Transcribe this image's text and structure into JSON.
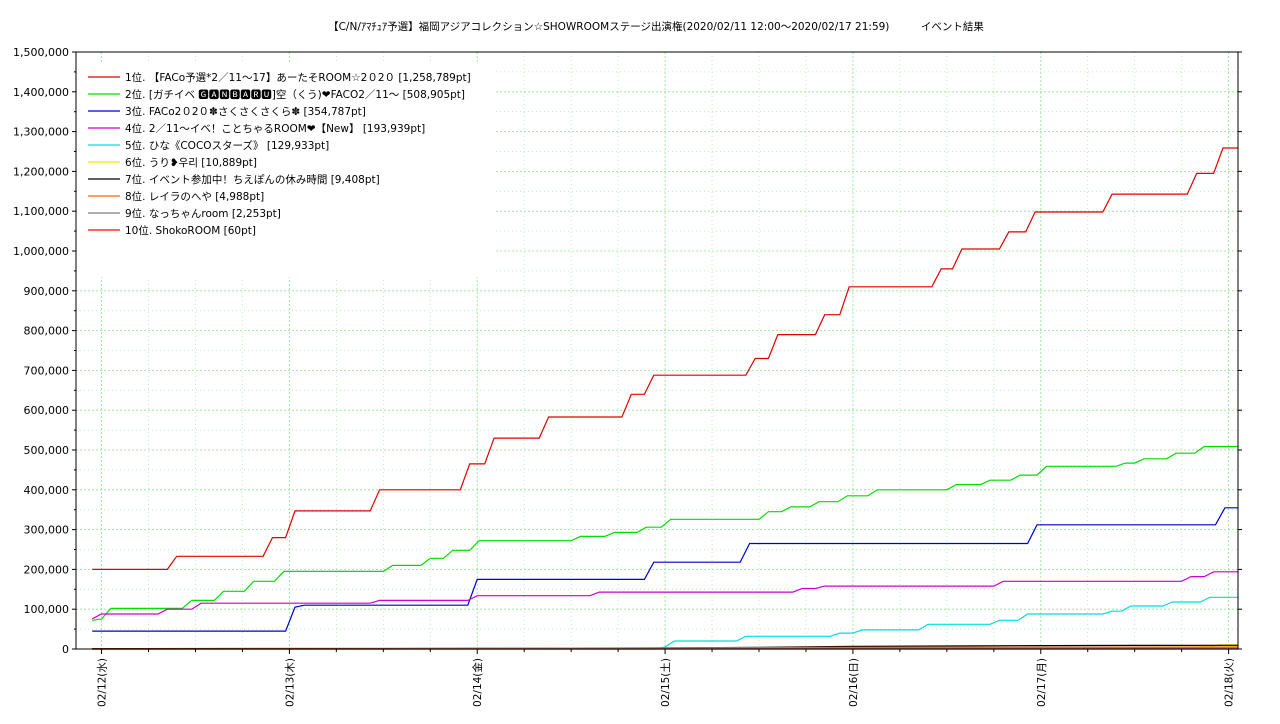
{
  "chart_data": {
    "type": "line",
    "title": "【C/N/ｱﾏﾁｭｱ予選】福岡アジアコレクション☆SHOWROOMステージ出演権(2020/02/11 12:00〜2020/02/17 21:59)　　　イベント結果",
    "xlabel": "",
    "ylabel": "",
    "ylim": [
      0,
      1500000
    ],
    "xlim": [
      -0.136,
      6.05
    ],
    "grid": true,
    "legend_position": "top-left",
    "y_ticks": [
      0,
      100000,
      200000,
      300000,
      400000,
      500000,
      600000,
      700000,
      800000,
      900000,
      1000000,
      1100000,
      1200000,
      1300000,
      1400000,
      1500000
    ],
    "y_tick_labels": [
      "0",
      "100,000",
      "200,000",
      "300,000",
      "400,000",
      "500,000",
      "600,000",
      "700,000",
      "800,000",
      "900,000",
      "1,000,000",
      "1,100,000",
      "1,200,000",
      "1,300,000",
      "1,400,000",
      "1,500,000"
    ],
    "x_ticks": [
      0,
      1,
      2,
      3,
      4,
      5,
      6
    ],
    "x_tick_labels": [
      "02/12(水)",
      "02/13(木)",
      "02/14(金)",
      "02/15(土)",
      "02/16(日)",
      "02/17(月)",
      "02/18(火)"
    ],
    "series": [
      {
        "name": "1位. 【FACo予選*2／11〜17】あーたそROOM☆2０2０ [1,258,789pt]",
        "color": "#e00000",
        "points": [
          [
            -0.05,
            200000
          ],
          [
            0.35,
            200000
          ],
          [
            0.4,
            233000
          ],
          [
            0.86,
            233000
          ],
          [
            0.91,
            280000
          ],
          [
            0.98,
            280000
          ],
          [
            1.03,
            347000
          ],
          [
            1.43,
            347000
          ],
          [
            1.48,
            400000
          ],
          [
            1.91,
            400000
          ],
          [
            1.96,
            465000
          ],
          [
            2.04,
            465000
          ],
          [
            2.09,
            530000
          ],
          [
            2.33,
            530000
          ],
          [
            2.38,
            583000
          ],
          [
            2.77,
            583000
          ],
          [
            2.82,
            640000
          ],
          [
            2.89,
            640000
          ],
          [
            2.94,
            688000
          ],
          [
            3.43,
            688000
          ],
          [
            3.48,
            730000
          ],
          [
            3.55,
            730000
          ],
          [
            3.6,
            790000
          ],
          [
            3.8,
            790000
          ],
          [
            3.85,
            840000
          ],
          [
            3.93,
            840000
          ],
          [
            3.98,
            910000
          ],
          [
            4.42,
            910000
          ],
          [
            4.47,
            955000
          ],
          [
            4.53,
            955000
          ],
          [
            4.58,
            1005000
          ],
          [
            4.78,
            1005000
          ],
          [
            4.83,
            1048000
          ],
          [
            4.92,
            1048000
          ],
          [
            4.97,
            1098000
          ],
          [
            5.33,
            1098000
          ],
          [
            5.38,
            1143000
          ],
          [
            5.78,
            1143000
          ],
          [
            5.83,
            1195000
          ],
          [
            5.92,
            1195000
          ],
          [
            5.97,
            1258789
          ],
          [
            6.05,
            1258789
          ]
        ]
      },
      {
        "name": "2位. [ガチイベ 🅶🅰🅽🅱🅰🆁🆄]空（くう)❤FACO2／11〜 [508,905pt]",
        "color": "#00dd00",
        "points": [
          [
            -0.05,
            72000
          ],
          [
            0.0,
            75000
          ],
          [
            0.05,
            102000
          ],
          [
            0.43,
            102000
          ],
          [
            0.48,
            122000
          ],
          [
            0.6,
            122000
          ],
          [
            0.65,
            145000
          ],
          [
            0.76,
            145000
          ],
          [
            0.81,
            170000
          ],
          [
            0.92,
            170000
          ],
          [
            0.97,
            195000
          ],
          [
            1.5,
            195000
          ],
          [
            1.55,
            210000
          ],
          [
            1.7,
            210000
          ],
          [
            1.75,
            228000
          ],
          [
            1.82,
            228000
          ],
          [
            1.87,
            248000
          ],
          [
            1.96,
            248000
          ],
          [
            2.01,
            272000
          ],
          [
            2.5,
            272000
          ],
          [
            2.55,
            283000
          ],
          [
            2.68,
            283000
          ],
          [
            2.73,
            293000
          ],
          [
            2.85,
            293000
          ],
          [
            2.9,
            306000
          ],
          [
            2.98,
            306000
          ],
          [
            3.03,
            326000
          ],
          [
            3.5,
            326000
          ],
          [
            3.55,
            345000
          ],
          [
            3.62,
            345000
          ],
          [
            3.67,
            357000
          ],
          [
            3.77,
            357000
          ],
          [
            3.82,
            370000
          ],
          [
            3.92,
            370000
          ],
          [
            3.97,
            385000
          ],
          [
            4.08,
            385000
          ],
          [
            4.13,
            400000
          ],
          [
            4.5,
            400000
          ],
          [
            4.55,
            413000
          ],
          [
            4.68,
            413000
          ],
          [
            4.73,
            424000
          ],
          [
            4.84,
            424000
          ],
          [
            4.89,
            437000
          ],
          [
            4.98,
            437000
          ],
          [
            5.03,
            459000
          ],
          [
            5.4,
            459000
          ],
          [
            5.45,
            467000
          ],
          [
            5.5,
            467000
          ],
          [
            5.55,
            478000
          ],
          [
            5.67,
            478000
          ],
          [
            5.72,
            492000
          ],
          [
            5.82,
            492000
          ],
          [
            5.87,
            508905
          ],
          [
            6.05,
            508905
          ]
        ]
      },
      {
        "name": "3位. FACo2０2０✽さくさくさくら✽ [354,787pt]",
        "color": "#0000cc",
        "points": [
          [
            -0.05,
            45000
          ],
          [
            0.98,
            45000
          ],
          [
            1.03,
            105000
          ],
          [
            1.08,
            110000
          ],
          [
            1.95,
            110000
          ],
          [
            2.0,
            175000
          ],
          [
            2.89,
            175000
          ],
          [
            2.94,
            218000
          ],
          [
            3.4,
            218000
          ],
          [
            3.45,
            265000
          ],
          [
            4.93,
            265000
          ],
          [
            4.98,
            312000
          ],
          [
            5.93,
            312000
          ],
          [
            5.98,
            354787
          ],
          [
            6.05,
            354787
          ]
        ]
      },
      {
        "name": "4位. 2／11〜イベ！ことちゃるROOM❤【New】 [193,939pt]",
        "color": "#cc00cc",
        "points": [
          [
            -0.05,
            76000
          ],
          [
            0.0,
            88000
          ],
          [
            0.3,
            88000
          ],
          [
            0.35,
            100000
          ],
          [
            0.48,
            100000
          ],
          [
            0.53,
            115000
          ],
          [
            1.43,
            115000
          ],
          [
            1.48,
            122000
          ],
          [
            1.95,
            122000
          ],
          [
            2.0,
            134000
          ],
          [
            2.6,
            134000
          ],
          [
            2.65,
            143000
          ],
          [
            3.68,
            143000
          ],
          [
            3.73,
            152000
          ],
          [
            3.8,
            152000
          ],
          [
            3.85,
            158000
          ],
          [
            4.75,
            158000
          ],
          [
            4.8,
            170000
          ],
          [
            5.75,
            170000
          ],
          [
            5.8,
            182000
          ],
          [
            5.87,
            182000
          ],
          [
            5.92,
            193939
          ],
          [
            6.05,
            193939
          ]
        ]
      },
      {
        "name": "5位. ひな《COCOスターズ》 [129,933pt]",
        "color": "#00dddd",
        "points": [
          [
            -0.05,
            0
          ],
          [
            2.95,
            0
          ],
          [
            3.0,
            5000
          ],
          [
            3.05,
            20000
          ],
          [
            3.38,
            20000
          ],
          [
            3.43,
            32000
          ],
          [
            3.88,
            32000
          ],
          [
            3.93,
            40000
          ],
          [
            4.0,
            40000
          ],
          [
            4.05,
            48000
          ],
          [
            4.35,
            48000
          ],
          [
            4.4,
            62000
          ],
          [
            4.73,
            62000
          ],
          [
            4.78,
            72000
          ],
          [
            4.88,
            72000
          ],
          [
            4.93,
            88000
          ],
          [
            5.33,
            88000
          ],
          [
            5.38,
            95000
          ],
          [
            5.43,
            95000
          ],
          [
            5.48,
            108000
          ],
          [
            5.65,
            108000
          ],
          [
            5.7,
            118000
          ],
          [
            5.85,
            118000
          ],
          [
            5.9,
            129933
          ],
          [
            6.05,
            129933
          ]
        ]
      },
      {
        "name": "6位. うり❥우리 [10,889pt]",
        "color": "#eeee00",
        "points": [
          [
            -0.05,
            0
          ],
          [
            5.7,
            0
          ],
          [
            5.75,
            4000
          ],
          [
            5.9,
            6000
          ],
          [
            5.95,
            10889
          ],
          [
            6.05,
            10889
          ]
        ]
      },
      {
        "name": "7位. イベント参加中！ちえぽんの休み時間 [9,408pt]",
        "color": "#000000",
        "points": [
          [
            -0.05,
            1000
          ],
          [
            2.0,
            1500
          ],
          [
            3.0,
            2500
          ],
          [
            3.5,
            4000
          ],
          [
            4.0,
            6500
          ],
          [
            4.5,
            7500
          ],
          [
            5.0,
            8500
          ],
          [
            5.5,
            9000
          ],
          [
            6.05,
            9408
          ]
        ]
      },
      {
        "name": "8位. レイラのへや [4,988pt]",
        "color": "#ff6600",
        "points": [
          [
            -0.05,
            0
          ],
          [
            1.5,
            0
          ],
          [
            2.3,
            2000
          ],
          [
            3.0,
            3000
          ],
          [
            4.0,
            4000
          ],
          [
            5.0,
            4500
          ],
          [
            6.05,
            4988
          ]
        ]
      },
      {
        "name": "9位. なっちゃんroom [2,253pt]",
        "color": "#808080",
        "points": [
          [
            -0.05,
            0
          ],
          [
            1.0,
            500
          ],
          [
            2.0,
            1000
          ],
          [
            3.0,
            1500
          ],
          [
            4.0,
            1800
          ],
          [
            5.0,
            2100
          ],
          [
            6.05,
            2253
          ]
        ]
      },
      {
        "name": "10位. ShokoROOM [60pt]",
        "color": "#ff0000",
        "points": [
          [
            -0.05,
            0
          ],
          [
            6.05,
            60
          ]
        ]
      }
    ]
  }
}
